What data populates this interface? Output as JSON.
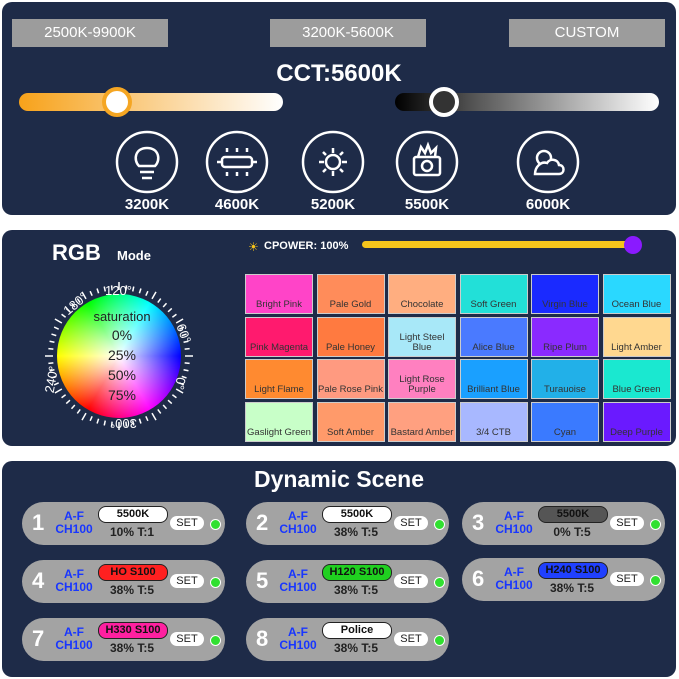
{
  "cct": {
    "tabs": [
      "2500K-9900K",
      "3200K-5600K",
      "CUSTOM"
    ],
    "title": "CCT:5600K",
    "presets": [
      "3200K",
      "4600K",
      "5200K",
      "5500K",
      "6000K"
    ]
  },
  "rgb": {
    "title": "RGB",
    "mode": "Mode",
    "cpower": "CPOWER: 100%",
    "saturation": "saturation",
    "sat_levels": [
      "0%",
      "25%",
      "50%",
      "75%"
    ],
    "angles": [
      "120°",
      "60°",
      "0°",
      "300°",
      "240°",
      "180°"
    ],
    "swatches": [
      {
        "name": "Bright Pink",
        "color": "#ff44c8"
      },
      {
        "name": "Pale Gold",
        "color": "#ff8c5a"
      },
      {
        "name": "Chocolate",
        "color": "#ffae80"
      },
      {
        "name": "Soft Green",
        "color": "#22e0d8"
      },
      {
        "name": "Virgin Blue",
        "color": "#1a2aff"
      },
      {
        "name": "Ocean Blue",
        "color": "#2ad8ff"
      },
      {
        "name": "Pink Magenta",
        "color": "#ff1a6e"
      },
      {
        "name": "Pale Honey",
        "color": "#ff7a40"
      },
      {
        "name": "Light Steel Blue",
        "color": "#a8e8f8"
      },
      {
        "name": "Alice Blue",
        "color": "#4a7aff"
      },
      {
        "name": "Ripe Plum",
        "color": "#8a2aff"
      },
      {
        "name": "Light Amber",
        "color": "#ffd890"
      },
      {
        "name": "Light Flame",
        "color": "#ff8a30"
      },
      {
        "name": "Pale Rose Pink",
        "color": "#ff9a80"
      },
      {
        "name": "Light Rose Purple",
        "color": "#ff80c0"
      },
      {
        "name": "Brilliant Blue",
        "color": "#1aa0ff"
      },
      {
        "name": "Turauoise",
        "color": "#22b0e8"
      },
      {
        "name": "Blue Green",
        "color": "#1ae8d0"
      },
      {
        "name": "Gaslight Green",
        "color": "#c8ffc8"
      },
      {
        "name": "Soft Amber",
        "color": "#ff9a6a"
      },
      {
        "name": "Bastard Amber",
        "color": "#ffa080"
      },
      {
        "name": "3/4 CTB",
        "color": "#a8b8ff"
      },
      {
        "name": "Cyan",
        "color": "#3a7aff"
      },
      {
        "name": "Deep Purple",
        "color": "#6a1aff"
      }
    ]
  },
  "dynamic": {
    "title": "Dynamic Scene",
    "scenes": [
      {
        "index": "1",
        "range": "A-F",
        "channel": "CH100",
        "tag": "5500K",
        "tag_color": "#ffffff",
        "info": "10% T:1",
        "button": "SET"
      },
      {
        "index": "2",
        "range": "A-F",
        "channel": "CH100",
        "tag": "5500K",
        "tag_color": "#ffffff",
        "info": "38% T:5",
        "button": "SET"
      },
      {
        "index": "3",
        "range": "A-F",
        "channel": "CH100",
        "tag": "5500K",
        "tag_color": "#555555",
        "info": "0% T:5",
        "button": "SET"
      },
      {
        "index": "4",
        "range": "A-F",
        "channel": "CH100",
        "tag": "HO S100",
        "tag_color": "#ff2020",
        "info": "38% T:5",
        "button": "SET"
      },
      {
        "index": "5",
        "range": "A-F",
        "channel": "CH100",
        "tag": "H120 S100",
        "tag_color": "#20d020",
        "info": "38% T:5",
        "button": "SET"
      },
      {
        "index": "6",
        "range": "A-F",
        "channel": "CH100",
        "tag": "H240 S100",
        "tag_color": "#2040ff",
        "info": "38% T:5",
        "button": "SET"
      },
      {
        "index": "7",
        "range": "A-F",
        "channel": "CH100",
        "tag": "H330 S100",
        "tag_color": "#ff20a0",
        "info": "38% T:5",
        "button": "SET"
      },
      {
        "index": "8",
        "range": "A-F",
        "channel": "CH100",
        "tag": "Police",
        "tag_color": "#ffffff",
        "info": "38% T:5",
        "button": "SET"
      }
    ]
  }
}
